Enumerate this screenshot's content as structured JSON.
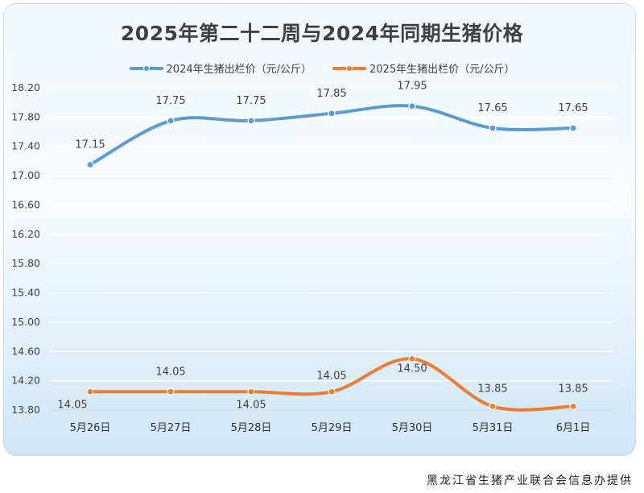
{
  "colors": {
    "series_2024": "#5b9bd5",
    "series_2025": "#ed7d31",
    "grid": "#ffffff"
  },
  "chart_data": {
    "type": "line",
    "title": "2025年第二十二周与2024年同期生猪价格",
    "categories": [
      "5月26日",
      "5月27日",
      "5月28日",
      "5月29日",
      "5月30日",
      "5月31日",
      "6月1日"
    ],
    "series": [
      {
        "name": "2024年生猪出栏价（元/公斤）",
        "values": [
          17.15,
          17.75,
          17.75,
          17.85,
          17.95,
          17.65,
          17.65
        ],
        "labels": [
          "17.15",
          "17.75",
          "17.75",
          "17.85",
          "17.95",
          "17.65",
          "17.65"
        ]
      },
      {
        "name": "2025年生猪出栏价（元/公斤）",
        "values": [
          14.05,
          14.05,
          14.05,
          14.05,
          14.5,
          13.85,
          13.85
        ],
        "labels": [
          "14.05",
          "14.05",
          "14.05",
          "14.05",
          "14.50",
          "13.85",
          "13.85"
        ]
      }
    ],
    "ylim": [
      13.8,
      18.2
    ],
    "yticks": [
      "13.80",
      "14.20",
      "14.60",
      "15.00",
      "15.40",
      "15.80",
      "16.20",
      "16.60",
      "17.00",
      "17.40",
      "17.80",
      "18.20"
    ],
    "xlabel": "",
    "ylabel": "",
    "grid": true,
    "legend": "top"
  },
  "footer": {
    "credit": "黑龙江省生猪产业联合会信息办提供"
  }
}
